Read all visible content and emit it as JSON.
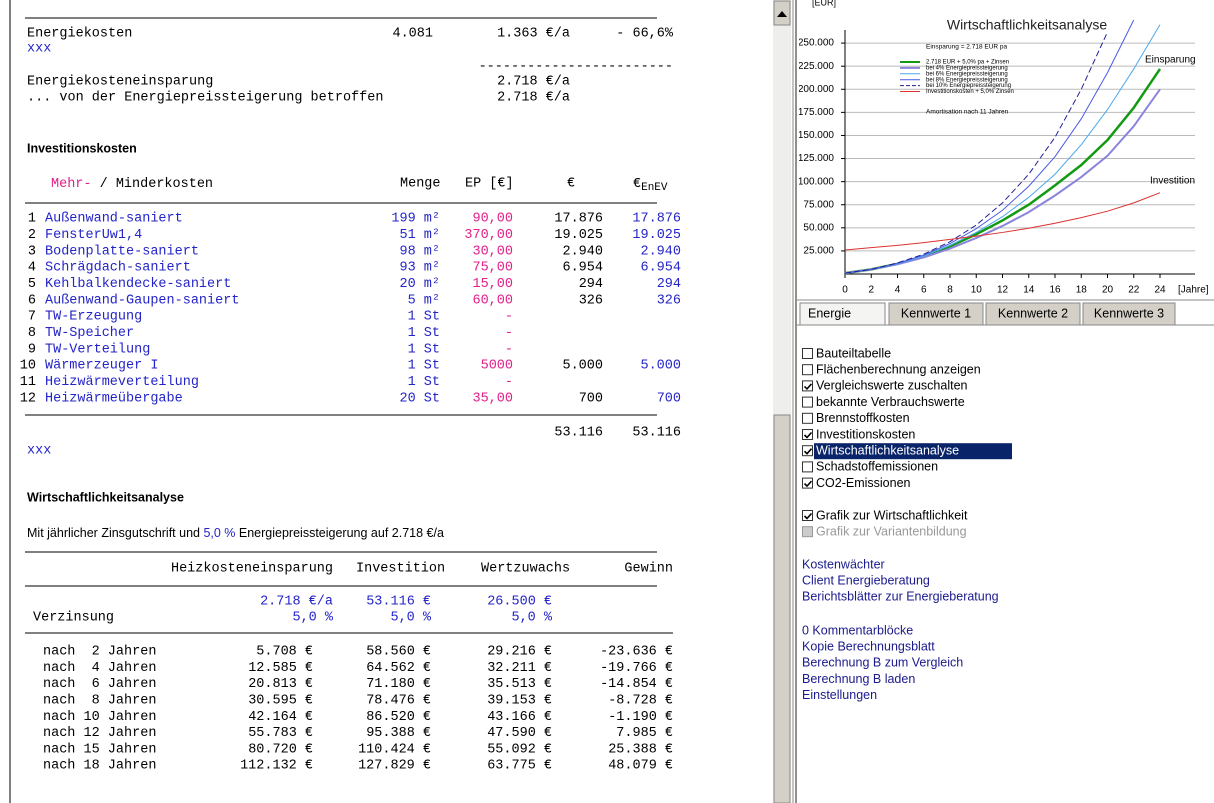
{
  "energy": {
    "label": "Energiekosten",
    "value1": "4.081",
    "value2": "1.363 €/a",
    "change": "- 66,6%",
    "note": "xxx",
    "separator": "------------------------",
    "savings_label": "Energiekosteneinsparung",
    "savings_value": "2.718 €/a",
    "affected_label": "... von der Energiepreissteigerung betroffen",
    "affected_value": "2.718 €/a"
  },
  "investment": {
    "title": "Investitionskosten",
    "header": {
      "mehr": "Mehr-",
      "minder": " / Minderkosten",
      "menge": "Menge",
      "ep": "EP [€]",
      "eur": "€",
      "enev_symbol": "€",
      "enev_sub": "EnEV"
    },
    "rows": [
      [
        "1",
        "Außenwand-saniert",
        "199 m²",
        "90,00",
        "17.876",
        "17.876"
      ],
      [
        "2",
        "FensterUw1,4",
        "51 m²",
        "370,00",
        "19.025",
        "19.025"
      ],
      [
        "3",
        "Bodenplatte-saniert",
        "98 m²",
        "30,00",
        "2.940",
        "2.940"
      ],
      [
        "4",
        "Schrägdach-saniert",
        "93 m²",
        "75,00",
        "6.954",
        "6.954"
      ],
      [
        "5",
        "Kehlbalkendecke-saniert",
        "20 m²",
        "15,00",
        "294",
        "294"
      ],
      [
        "6",
        "Außenwand-Gaupen-saniert",
        "5 m²",
        "60,00",
        "326",
        "326"
      ],
      [
        "7",
        "TW-Erzeugung",
        "1 St",
        "-",
        null,
        null
      ],
      [
        "8",
        "TW-Speicher",
        "1 St",
        "-",
        null,
        null
      ],
      [
        "9",
        "TW-Verteilung",
        "1 St",
        "-",
        null,
        null
      ],
      [
        "10",
        "Wärmerzeuger I",
        "1 St",
        "5000",
        "5.000",
        "5.000"
      ],
      [
        "11",
        "Heizwärmeverteilung",
        "1 St",
        "-",
        null,
        null
      ],
      [
        "12",
        "Heizwärmeübergabe",
        "20 St",
        "35,00",
        "700",
        "700"
      ]
    ],
    "total": "53.116",
    "total_enev": "53.116",
    "note": "xxx"
  },
  "analysis": {
    "title": "Wirtschaftlichkeitsanalyse",
    "intro_before": "Mit jährlicher Zinsgutschrift und ",
    "intro_rate": "5,0 %",
    "intro_after": " Energiepreissteigerung auf 2.718 €/a",
    "columns": [
      "Heizkosteneinsparung",
      "Investition",
      "Wertzuwachs",
      "Gewinn"
    ],
    "base": [
      "2.718 €/a",
      "53.116 €",
      "26.500 €"
    ],
    "rate_label": "Verzinsung",
    "rates": [
      "5,0 %",
      "5,0 %",
      "5,0 %"
    ],
    "rows": [
      [
        "nach  2 Jahren",
        "5.708 €",
        "58.560 €",
        "29.216 €",
        "-23.636 €"
      ],
      [
        "nach  4 Jahren",
        "12.585 €",
        "64.562 €",
        "32.211 €",
        "-19.766 €"
      ],
      [
        "nach  6 Jahren",
        "20.813 €",
        "71.180 €",
        "35.513 €",
        "-14.854 €"
      ],
      [
        "nach  8 Jahren",
        "30.595 €",
        "78.476 €",
        "39.153 €",
        "-8.728 €"
      ],
      [
        "nach 10 Jahren",
        "42.164 €",
        "86.520 €",
        "43.166 €",
        "-1.190 €"
      ],
      [
        "nach 12 Jahren",
        "55.783 €",
        "95.388 €",
        "47.590 €",
        "7.985 €"
      ],
      [
        "nach 15 Jahren",
        "80.720 €",
        "110.424 €",
        "55.092 €",
        "25.388 €"
      ],
      [
        "nach 18 Jahren",
        "112.132 €",
        "127.829 €",
        "63.775 €",
        "48.079 €"
      ]
    ]
  },
  "chart_data": {
    "type": "line",
    "title": "Wirtschaftlichkeitsanalyse",
    "y_label": "[EUR]",
    "x_label": "[Jahre]",
    "legend_title": "Einsparung = 2.718 EUR pa",
    "amortization": "Amortisation nach 11 Jahren",
    "annotations": [
      "Einsparung",
      "Investition"
    ],
    "x": [
      0,
      2,
      4,
      6,
      8,
      10,
      12,
      14,
      16,
      18,
      20,
      22,
      24
    ],
    "xlim": [
      0,
      24
    ],
    "xticks": [
      0,
      2,
      4,
      6,
      8,
      10,
      12,
      14,
      16,
      18,
      20,
      22,
      24
    ],
    "ylim": [
      0,
      275000
    ],
    "yticks": [
      {
        "value": 25000,
        "label": "25.000"
      },
      {
        "value": 50000,
        "label": "50.000"
      },
      {
        "value": 75000,
        "label": "75.000"
      },
      {
        "value": 100000,
        "label": "100.000"
      },
      {
        "value": 125000,
        "label": "125.000"
      },
      {
        "value": 150000,
        "label": "150.000"
      },
      {
        "value": 175000,
        "label": "175.000"
      },
      {
        "value": 200000,
        "label": "200.000"
      },
      {
        "value": 225000,
        "label": "225.000"
      },
      {
        "value": 250000,
        "label": "250.000"
      }
    ],
    "grid": true,
    "series": [
      {
        "name": "2.718 EUR + 5,0% pa + Zinsen",
        "color": "#129a12",
        "line_width": 2.5,
        "dashed": false,
        "values": [
          1000,
          5000,
          11000,
          19000,
          30000,
          43000,
          58000,
          75000,
          96000,
          118000,
          145000,
          180000,
          222000
        ]
      },
      {
        "name": "bei 4% Energiepreissteigerung",
        "color": "#8a84dc",
        "line_width": 2,
        "dashed": false,
        "values": [
          1000,
          5000,
          10500,
          18000,
          27500,
          39000,
          52000,
          67000,
          85000,
          105000,
          128000,
          160000,
          200000
        ]
      },
      {
        "name": "bei 6% Energiepreissteigerung",
        "color": "#4aa8f0",
        "line_width": 1,
        "dashed": false,
        "values": [
          1000,
          5000,
          11000,
          19500,
          31000,
          45000,
          62000,
          83000,
          108000,
          140000,
          178000,
          222000,
          270000
        ]
      },
      {
        "name": "bei 8% Energiepreissteigerung",
        "color": "#4a5ae6",
        "line_width": 1,
        "dashed": false,
        "values": [
          1000,
          5000,
          11500,
          20500,
          33000,
          49000,
          69000,
          95000,
          127000,
          168000,
          218000,
          275000,
          null
        ]
      },
      {
        "name": "bei 10% Energiepreissteigerung",
        "color": "#20209a",
        "line_width": 1,
        "dashed": true,
        "values": [
          1000,
          5000,
          12000,
          21500,
          35000,
          53000,
          77000,
          108000,
          148000,
          200000,
          262000,
          null,
          null
        ]
      },
      {
        "name": "Investitionskosten + 5,0% Zinsen",
        "color": "#e03030",
        "line_width": 1,
        "dashed": false,
        "values": [
          26000,
          28500,
          31000,
          34000,
          37500,
          41000,
          45000,
          49500,
          55000,
          61000,
          68000,
          77000,
          88000
        ]
      }
    ]
  },
  "tabs": [
    {
      "label": "Energie",
      "active": true
    },
    {
      "label": "Kennwerte 1",
      "active": false
    },
    {
      "label": "Kennwerte 2",
      "active": false
    },
    {
      "label": "Kennwerte 3",
      "active": false
    }
  ],
  "options": [
    {
      "label": "Bauteiltabelle",
      "checked": false
    },
    {
      "label": "Flächenberechnung anzeigen",
      "checked": false
    },
    {
      "label": "Vergleichswerte zuschalten",
      "checked": true
    },
    {
      "label": "bekannte Verbrauchswerte",
      "checked": false
    },
    {
      "label": "Brennstoffkosten",
      "checked": false
    },
    {
      "label": "Investitionskosten",
      "checked": true
    },
    {
      "label": "Wirtschaftlichkeitsanalyse",
      "checked": true,
      "selected": true
    },
    {
      "label": "Schadstoffemissionen",
      "checked": false
    },
    {
      "label": "CO2-Emissionen",
      "checked": true
    }
  ],
  "graph_options": [
    {
      "label": "Grafik zur Wirtschaftlichkeit",
      "checked": true,
      "disabled": false
    },
    {
      "label": "Grafik zur Variantenbildung",
      "checked": false,
      "disabled": true
    }
  ],
  "links": [
    "Kostenwächter",
    "Client Energieberatung",
    "Berichtsblätter zur Energieberatung"
  ],
  "links2": [
    "0 Kommentarblöcke",
    "Kopie Berechnungsblatt",
    "Berechnung B zum Vergleich",
    "Berechnung B laden",
    "Einstellungen"
  ]
}
